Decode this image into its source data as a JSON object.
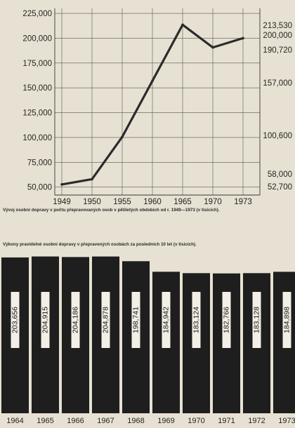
{
  "chart_data": [
    {
      "type": "line",
      "caption": "Vývoj osobní dopravy v počtu přepravovaných osob v pětiletých obdobích od r. 1949—1973 (v tisících).",
      "x": [
        "1949",
        "1950",
        "1955",
        "1960",
        "1965",
        "1970",
        "1973"
      ],
      "values": [
        52700,
        58000,
        100600,
        157000,
        213530,
        190720,
        200000
      ],
      "y_ticks": [
        "225,000",
        "200,000",
        "175,000",
        "150,000",
        "125,000",
        "100,000",
        "75,000",
        "50,000"
      ],
      "ylim": [
        42000,
        230000
      ],
      "right_labels": [
        "213,530",
        "200,000",
        "190,720",
        "157,000",
        "100,600",
        "58,000",
        "52,700"
      ],
      "grid": true,
      "line_color": "#2b2b2b"
    },
    {
      "type": "bar",
      "caption": "Výkony pravidelné osobní dopravy v přepravených osobách za posledních 10 let (v tisících).",
      "categories": [
        "1964",
        "1965",
        "1966",
        "1967",
        "1968",
        "1969",
        "1970",
        "1971",
        "1972",
        "1973"
      ],
      "values": [
        203656,
        204915,
        204186,
        204878,
        198741,
        184942,
        183124,
        182766,
        183128,
        184898
      ],
      "value_labels": [
        "203,656",
        "204,915",
        "204,186",
        "204,878",
        "198,741",
        "184,942",
        "183,124",
        "182,766",
        "183,128",
        "184,898"
      ],
      "ylim": [
        0,
        210000
      ],
      "bar_color": "#1e1e1e",
      "label_box_color": "#f2efe6"
    }
  ]
}
